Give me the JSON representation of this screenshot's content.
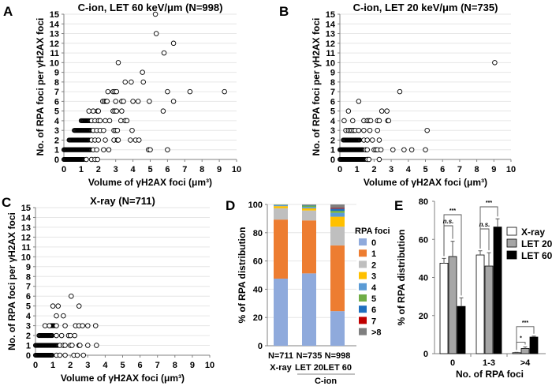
{
  "chart_data": [
    {
      "panel": "A",
      "type": "scatter",
      "title": "C-ion, LET 60 keV/μm (N=998)",
      "xlabel": "Volume of γH2AX foci (μm³)",
      "ylabel": "No. of RPA foci per γH2AX foci",
      "xlim": [
        0,
        10
      ],
      "ylim": [
        0,
        15
      ],
      "xticks": [
        "0",
        "1",
        "2",
        "3",
        "4",
        "5",
        "6",
        "7",
        "8",
        "9",
        "10"
      ],
      "yticks": [
        "0",
        "1",
        "2",
        "3",
        "4",
        "5",
        "6",
        "7",
        "8",
        "9",
        "10",
        "11",
        "12",
        "13",
        "14",
        "15"
      ],
      "grid": true,
      "dense_bands": [
        [
          0,
          0.0,
          1.2
        ],
        [
          1,
          0.0,
          1.6
        ],
        [
          2,
          0.3,
          1.5
        ],
        [
          3,
          0.6,
          1.6
        ],
        [
          4,
          1.0,
          1.5
        ]
      ],
      "points": [
        [
          1.3,
          0
        ],
        [
          1.6,
          0
        ],
        [
          1.8,
          0
        ],
        [
          1.95,
          0
        ],
        [
          1.7,
          1
        ],
        [
          1.9,
          1
        ],
        [
          2.3,
          1
        ],
        [
          2.6,
          1
        ],
        [
          4.9,
          1
        ],
        [
          5.0,
          1
        ],
        [
          6.0,
          1
        ],
        [
          1.6,
          2
        ],
        [
          1.8,
          2
        ],
        [
          2.0,
          2
        ],
        [
          2.4,
          2
        ],
        [
          2.9,
          2
        ],
        [
          3.1,
          2
        ],
        [
          3.15,
          2
        ],
        [
          3.85,
          2
        ],
        [
          4.15,
          2
        ],
        [
          4.35,
          2
        ],
        [
          1.7,
          3
        ],
        [
          1.9,
          3
        ],
        [
          2.1,
          3
        ],
        [
          2.3,
          3
        ],
        [
          2.9,
          3
        ],
        [
          3.0,
          3
        ],
        [
          3.1,
          3
        ],
        [
          3.95,
          3
        ],
        [
          1.6,
          4
        ],
        [
          1.8,
          4
        ],
        [
          2.0,
          4
        ],
        [
          2.1,
          4
        ],
        [
          2.4,
          4
        ],
        [
          2.65,
          4
        ],
        [
          3.3,
          4
        ],
        [
          3.55,
          4
        ],
        [
          3.65,
          4
        ],
        [
          1.45,
          5
        ],
        [
          1.7,
          5
        ],
        [
          1.95,
          5
        ],
        [
          2.0,
          5
        ],
        [
          2.85,
          5
        ],
        [
          2.95,
          5
        ],
        [
          3.05,
          5
        ],
        [
          3.35,
          5
        ],
        [
          5.75,
          5
        ],
        [
          2.25,
          6
        ],
        [
          2.35,
          6
        ],
        [
          2.45,
          6
        ],
        [
          2.5,
          6
        ],
        [
          3.0,
          6
        ],
        [
          3.35,
          6
        ],
        [
          3.45,
          6
        ],
        [
          4.0,
          6
        ],
        [
          4.3,
          6
        ],
        [
          4.95,
          6
        ],
        [
          6.35,
          6
        ],
        [
          2.55,
          7
        ],
        [
          2.85,
          7
        ],
        [
          2.95,
          7
        ],
        [
          3.05,
          7
        ],
        [
          6.0,
          7
        ],
        [
          7.3,
          7
        ],
        [
          9.3,
          7
        ],
        [
          3.55,
          8
        ],
        [
          3.9,
          8
        ],
        [
          4.6,
          8
        ],
        [
          4.55,
          9
        ],
        [
          3.15,
          10
        ],
        [
          5.8,
          11
        ],
        [
          6.35,
          12
        ],
        [
          5.35,
          13
        ],
        [
          5.3,
          15
        ]
      ]
    },
    {
      "panel": "B",
      "type": "scatter",
      "title": "C-ion, LET 20 keV/μm (N=735)",
      "xlabel": "Volume of γH2AX foci (μm³)",
      "ylabel": "No. of RPA foci per γH2AX foci",
      "xlim": [
        0,
        10
      ],
      "ylim": [
        0,
        15
      ],
      "xticks": [
        "0",
        "1",
        "2",
        "3",
        "4",
        "5",
        "6",
        "7",
        "8",
        "9",
        "10"
      ],
      "yticks": [
        "0",
        "1",
        "2",
        "3",
        "4",
        "5",
        "6",
        "7",
        "8",
        "9",
        "10",
        "11",
        "12",
        "13",
        "14",
        "15"
      ],
      "grid": true,
      "dense_bands": [
        [
          0,
          0.0,
          1.5
        ],
        [
          1,
          0.0,
          1.4
        ],
        [
          2,
          0.2,
          1.2
        ]
      ],
      "points": [
        [
          1.6,
          0
        ],
        [
          1.7,
          0
        ],
        [
          2.3,
          0
        ],
        [
          1.5,
          1
        ],
        [
          1.6,
          1
        ],
        [
          2.0,
          1
        ],
        [
          2.1,
          1
        ],
        [
          2.2,
          1
        ],
        [
          2.4,
          1
        ],
        [
          3.1,
          1
        ],
        [
          3.75,
          1
        ],
        [
          4.2,
          1
        ],
        [
          5.0,
          1
        ],
        [
          1.4,
          2
        ],
        [
          1.6,
          2
        ],
        [
          1.9,
          2
        ],
        [
          2.3,
          2
        ],
        [
          0.35,
          3
        ],
        [
          0.5,
          3
        ],
        [
          0.6,
          3
        ],
        [
          0.7,
          3
        ],
        [
          0.8,
          3
        ],
        [
          0.9,
          3
        ],
        [
          1.1,
          3
        ],
        [
          1.4,
          3
        ],
        [
          1.75,
          3
        ],
        [
          2.2,
          3
        ],
        [
          5.1,
          3
        ],
        [
          0.25,
          4
        ],
        [
          0.75,
          4
        ],
        [
          1.4,
          4
        ],
        [
          1.6,
          4
        ],
        [
          1.7,
          4
        ],
        [
          1.8,
          4
        ],
        [
          2.2,
          4
        ],
        [
          2.3,
          4
        ],
        [
          2.8,
          4
        ],
        [
          2.85,
          4
        ],
        [
          0.5,
          5
        ],
        [
          2.45,
          5
        ],
        [
          2.75,
          5
        ],
        [
          1.1,
          6
        ],
        [
          3.5,
          7
        ],
        [
          9.05,
          10
        ]
      ]
    },
    {
      "panel": "C",
      "type": "scatter",
      "title": "X-ray (N=711)",
      "xlabel": "Volume of γH2AX foci (μm³)",
      "ylabel": "No. of RPA foci per γH2AX foci",
      "xlim": [
        0,
        10
      ],
      "ylim": [
        0,
        15
      ],
      "xticks": [
        "0",
        "1",
        "2",
        "3",
        "4",
        "5",
        "6",
        "7",
        "8",
        "9",
        "10"
      ],
      "yticks": [
        "0",
        "1",
        "2",
        "3",
        "4",
        "5",
        "6",
        "7",
        "8",
        "9",
        "10",
        "11",
        "12",
        "13",
        "14",
        "15"
      ],
      "grid": true,
      "dense_bands": [
        [
          0,
          0.0,
          1.0
        ],
        [
          1,
          0.0,
          1.3
        ],
        [
          2,
          0.2,
          1.0
        ],
        [
          3,
          0.8,
          1.1
        ]
      ],
      "points": [
        [
          1.2,
          0
        ],
        [
          1.4,
          0
        ],
        [
          1.7,
          0
        ],
        [
          2.2,
          0
        ],
        [
          2.4,
          0
        ],
        [
          2.75,
          0
        ],
        [
          1.4,
          1
        ],
        [
          1.6,
          1
        ],
        [
          1.7,
          1
        ],
        [
          2.0,
          1
        ],
        [
          2.1,
          1
        ],
        [
          2.5,
          1
        ],
        [
          2.55,
          1
        ],
        [
          3.0,
          1
        ],
        [
          3.5,
          1
        ],
        [
          1.2,
          2
        ],
        [
          1.5,
          2
        ],
        [
          1.9,
          2
        ],
        [
          2.0,
          2
        ],
        [
          2.25,
          2
        ],
        [
          0.55,
          3
        ],
        [
          0.8,
          3
        ],
        [
          1.2,
          3
        ],
        [
          1.7,
          3
        ],
        [
          2.3,
          3
        ],
        [
          2.5,
          3
        ],
        [
          2.7,
          3
        ],
        [
          3.0,
          3
        ],
        [
          3.45,
          3
        ],
        [
          1.2,
          4
        ],
        [
          1.6,
          4
        ],
        [
          1.0,
          5
        ],
        [
          1.3,
          5
        ],
        [
          2.5,
          5
        ],
        [
          2.05,
          6
        ]
      ]
    },
    {
      "panel": "D",
      "type": "bar",
      "stacked": true,
      "ylabel": "% of RPA distribution",
      "ylim": [
        0,
        100
      ],
      "yticks": [
        "0",
        "20",
        "40",
        "60",
        "80",
        "100"
      ],
      "categories": [
        "N=711",
        "N=735",
        "N=998"
      ],
      "category_sublabels": [
        "X-ray",
        "LET 20",
        "LET 60"
      ],
      "group_label": "C-ion",
      "legend_title": "RPA foci",
      "legend_position": "right",
      "series": [
        {
          "name": "0",
          "color": "#8faadc",
          "values": [
            47.5,
            51.2,
            24.5
          ]
        },
        {
          "name": "1",
          "color": "#ed7d31",
          "values": [
            41.8,
            37.5,
            46.5
          ]
        },
        {
          "name": "2",
          "color": "#bfbfbf",
          "values": [
            8.0,
            7.0,
            13.3
          ]
        },
        {
          "name": "3",
          "color": "#ffc000",
          "values": [
            1.5,
            1.5,
            7.0
          ]
        },
        {
          "name": "4",
          "color": "#5b9bd5",
          "values": [
            0.7,
            1.0,
            2.7
          ]
        },
        {
          "name": "5",
          "color": "#70ad47",
          "values": [
            0.3,
            1.0,
            1.5
          ]
        },
        {
          "name": "6",
          "color": "#1f6fbf",
          "values": [
            0.1,
            0.3,
            1.5
          ]
        },
        {
          "name": "7",
          "color": "#c00000",
          "values": [
            0.0,
            0.0,
            0.5
          ]
        },
        {
          "name": ">8",
          "color": "#7f7f7f",
          "values": [
            0.1,
            0.5,
            2.5
          ]
        }
      ]
    },
    {
      "panel": "E",
      "type": "bar",
      "ylabel": "% of RPA distribution",
      "xlabel": "No. of RPA foci",
      "ylim": [
        0,
        80
      ],
      "yticks": [
        "0",
        "20",
        "40",
        "60",
        "80"
      ],
      "categories": [
        "0",
        "1-3",
        ">4"
      ],
      "legend_position": "top-right",
      "series": [
        {
          "name": "X-ray",
          "color": "#ffffff",
          "values": [
            47.5,
            51.8,
            0.5
          ],
          "errors": [
            2.5,
            2.2,
            0.2
          ]
        },
        {
          "name": "LET 20",
          "color": "#a6a6a6",
          "values": [
            51.0,
            46.0,
            2.7
          ],
          "errors": [
            8.0,
            7.0,
            0.8
          ]
        },
        {
          "name": "LET 60",
          "color": "#000000",
          "values": [
            24.8,
            66.5,
            8.7
          ],
          "errors": [
            4.5,
            4.3,
            0.5
          ]
        }
      ],
      "annotations": [
        {
          "group": "0",
          "pair": [
            "X-ray",
            "LET 60"
          ],
          "label": "***"
        },
        {
          "group": "0",
          "pair": [
            "X-ray",
            "LET 20"
          ],
          "label": "n.s."
        },
        {
          "group": "1-3",
          "pair": [
            "X-ray",
            "LET 60"
          ],
          "label": "***"
        },
        {
          "group": "1-3",
          "pair": [
            "X-ray",
            "LET 20"
          ],
          "label": "n.s."
        },
        {
          "group": ">4",
          "pair": [
            "X-ray",
            "LET 60"
          ],
          "label": "***"
        },
        {
          "group": ">4",
          "pair": [
            "X-ray",
            "LET 20"
          ],
          "label": "*"
        }
      ]
    }
  ],
  "panel_labels": [
    "A",
    "B",
    "C",
    "D",
    "E"
  ]
}
